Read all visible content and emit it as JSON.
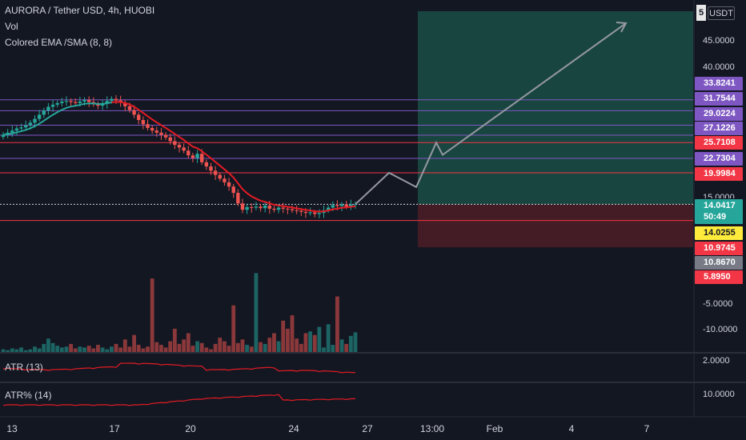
{
  "header": {
    "symbol_line": "AURORA / Tether USD, 4h, HUOBI",
    "vol_label": "Vol",
    "ema_label": "Colored EMA /SMA (8, 8)",
    "unit": "USDT",
    "unit_prefix": "5"
  },
  "price_axis": {
    "ticks": [
      "45.0000",
      "40.0000",
      "-5.0000",
      "-10.0000"
    ],
    "partial_tick": "15.0000"
  },
  "price_tags": [
    {
      "label": "33.8241",
      "color": "#7e57c2",
      "text_color": "#ffffff"
    },
    {
      "label": "31.7544",
      "color": "#7e57c2",
      "text_color": "#ffffff"
    },
    {
      "label": "29.0224",
      "color": "#7e57c2",
      "text_color": "#ffffff"
    },
    {
      "label": "27.1226",
      "color": "#7e57c2",
      "text_color": "#ffffff"
    },
    {
      "label": "25.7108",
      "color": "#f23645",
      "text_color": "#ffffff"
    },
    {
      "label": "22.7304",
      "color": "#7e57c2",
      "text_color": "#ffffff"
    },
    {
      "label": "19.9984",
      "color": "#f23645",
      "text_color": "#ffffff"
    },
    {
      "label": "14.0417",
      "color": "#26a69a",
      "text_color": "#ffffff"
    },
    {
      "label": "50:49",
      "color": "#26a69a",
      "text_color": "#ffffff"
    },
    {
      "label": "14.0255",
      "color": "#ffeb3b",
      "text_color": "#131722"
    },
    {
      "label": "10.9745",
      "color": "#f23645",
      "text_color": "#ffffff"
    },
    {
      "label": "10.8670",
      "color": "#787b86",
      "text_color": "#ffffff"
    },
    {
      "label": "5.8950",
      "color": "#f23645",
      "text_color": "#ffffff"
    }
  ],
  "panes": {
    "atr": {
      "label": "ATR (13)",
      "scale": "2.0000"
    },
    "atr_pct": {
      "label": "ATR% (14)",
      "scale": "10.0000"
    }
  },
  "time_axis": [
    "13",
    "17",
    "20",
    "24",
    "27",
    "13:00",
    "Feb",
    "4",
    "7"
  ],
  "colors": {
    "background": "#131722",
    "up": "#26a69a",
    "down": "#ef5350",
    "ema": "#e31b23",
    "purple_line": "#7e57c2",
    "red_line": "#f23645",
    "profit_zone": "#1b4d45",
    "loss_zone": "#4a1d26",
    "projection": "#9598a1"
  },
  "chart_data": {
    "type": "candlestick",
    "title": "AURORA / Tether USD, 4h, HUOBI",
    "y_unit": "USDT",
    "horizontal_levels": [
      33.8241,
      31.7544,
      29.0224,
      27.1226,
      25.7108,
      22.7304,
      19.9984,
      10.9745
    ],
    "last_price": 14.0417,
    "close_series": [
      27.2,
      27.6,
      28.0,
      28.4,
      28.6,
      29.0,
      29.5,
      30.2,
      31.0,
      31.8,
      32.5,
      32.9,
      33.2,
      33.5,
      33.6,
      33.4,
      33.2,
      33.5,
      33.8,
      33.4,
      33.0,
      32.7,
      33.1,
      33.6,
      34.0,
      33.7,
      33.3,
      32.6,
      31.9,
      31.0,
      30.0,
      29.2,
      28.5,
      28.0,
      27.6,
      27.2,
      26.7,
      26.0,
      25.3,
      24.8,
      24.2,
      23.3,
      22.8,
      23.6,
      22.0,
      21.2,
      20.4,
      19.6,
      18.9,
      18.2,
      17.4,
      16.2,
      14.2,
      13.0,
      13.5,
      13.4,
      13.6,
      13.3,
      13.8,
      13.2,
      13.0,
      13.4,
      13.2,
      13.1,
      12.9,
      12.8,
      12.6,
      12.4,
      12.5,
      12.2,
      12.4,
      12.9,
      13.4,
      13.9,
      13.7,
      14.0,
      13.6,
      14.0,
      14.0417
    ],
    "volume_series": [
      3,
      2,
      4,
      3,
      5,
      2,
      3,
      6,
      4,
      9,
      15,
      10,
      7,
      5,
      6,
      9,
      4,
      6,
      5,
      7,
      4,
      8,
      5,
      3,
      6,
      9,
      5,
      14,
      6,
      19,
      8,
      4,
      6,
      82,
      11,
      8,
      5,
      12,
      26,
      9,
      14,
      21,
      7,
      12,
      10,
      5,
      3,
      9,
      16,
      12,
      7,
      52,
      10,
      14,
      8,
      6,
      88,
      11,
      9,
      16,
      21,
      12,
      35,
      26,
      41,
      15,
      9,
      21,
      23,
      19,
      28,
      5,
      31,
      8,
      62,
      14,
      9,
      18,
      22
    ],
    "projection_path": [
      14.0417,
      19.9984,
      17.3,
      25.7108,
      23.4,
      47.6
    ],
    "time_ticks": [
      "13",
      "17",
      "20",
      "24",
      "27",
      "13:00",
      "Feb",
      "4",
      "7"
    ],
    "grid": false
  }
}
